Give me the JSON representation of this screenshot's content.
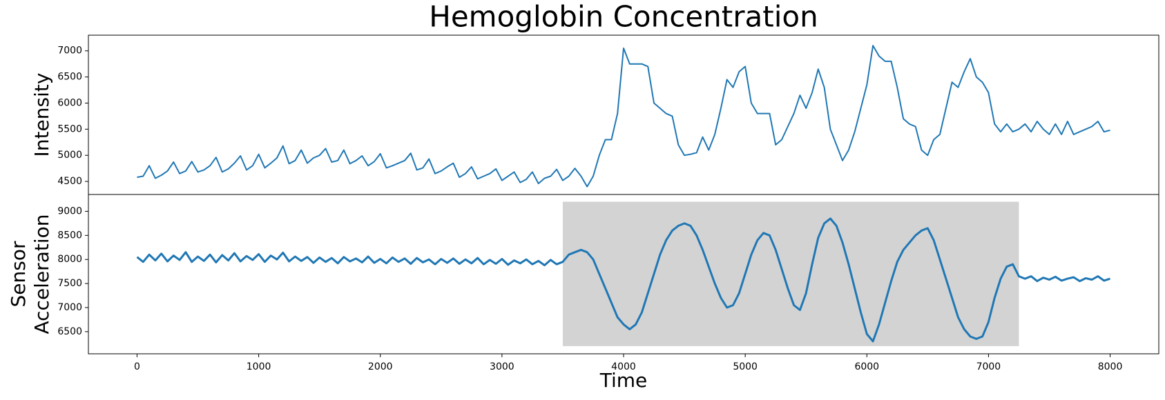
{
  "chart_data": [
    {
      "type": "line",
      "title": "Hemoglobin Concentration",
      "ylabel": "Intensity",
      "xlim": [
        -400,
        8400
      ],
      "ylim": [
        4250,
        7300
      ],
      "yticks": [
        4500,
        5000,
        5500,
        6000,
        6500,
        7000
      ],
      "x": [
        0,
        50,
        100,
        150,
        200,
        250,
        300,
        350,
        400,
        450,
        500,
        550,
        600,
        650,
        700,
        750,
        800,
        850,
        900,
        950,
        1000,
        1050,
        1100,
        1150,
        1200,
        1250,
        1300,
        1350,
        1400,
        1450,
        1500,
        1550,
        1600,
        1650,
        1700,
        1750,
        1800,
        1850,
        1900,
        1950,
        2000,
        2050,
        2100,
        2150,
        2200,
        2250,
        2300,
        2350,
        2400,
        2450,
        2500,
        2550,
        2600,
        2650,
        2700,
        2750,
        2800,
        2850,
        2900,
        2950,
        3000,
        3050,
        3100,
        3150,
        3200,
        3250,
        3300,
        3350,
        3400,
        3450,
        3500,
        3550,
        3600,
        3650,
        3700,
        3750,
        3800,
        3850,
        3900,
        3950,
        4000,
        4050,
        4100,
        4150,
        4200,
        4250,
        4300,
        4350,
        4400,
        4450,
        4500,
        4550,
        4600,
        4650,
        4700,
        4750,
        4800,
        4850,
        4900,
        4950,
        5000,
        5050,
        5100,
        5150,
        5200,
        5250,
        5300,
        5350,
        5400,
        5450,
        5500,
        5550,
        5600,
        5650,
        5700,
        5750,
        5800,
        5850,
        5900,
        5950,
        6000,
        6050,
        6100,
        6150,
        6200,
        6250,
        6300,
        6350,
        6400,
        6450,
        6500,
        6550,
        6600,
        6650,
        6700,
        6750,
        6800,
        6850,
        6900,
        6950,
        7000,
        7050,
        7100,
        7150,
        7200,
        7250,
        7300,
        7350,
        7400,
        7450,
        7500,
        7550,
        7600,
        7650,
        7700,
        7750,
        7800,
        7850,
        7900,
        7950,
        8000
      ],
      "values": [
        4580,
        4600,
        4800,
        4560,
        4620,
        4700,
        4870,
        4650,
        4700,
        4880,
        4680,
        4720,
        4800,
        4960,
        4680,
        4740,
        4850,
        4990,
        4720,
        4800,
        5020,
        4760,
        4850,
        4950,
        5180,
        4840,
        4900,
        5100,
        4850,
        4950,
        5000,
        5130,
        4870,
        4900,
        5100,
        4840,
        4900,
        4990,
        4800,
        4880,
        5030,
        4760,
        4800,
        4850,
        4900,
        5040,
        4720,
        4760,
        4930,
        4650,
        4700,
        4780,
        4850,
        4580,
        4650,
        4780,
        4550,
        4600,
        4650,
        4740,
        4520,
        4600,
        4680,
        4480,
        4540,
        4680,
        4460,
        4560,
        4600,
        4730,
        4520,
        4600,
        4750,
        4600,
        4400,
        4600,
        5000,
        5300,
        5300,
        5800,
        7050,
        6750,
        6750,
        6750,
        6700,
        6000,
        5900,
        5800,
        5750,
        5200,
        5000,
        5020,
        5050,
        5350,
        5100,
        5400,
        5900,
        6450,
        6300,
        6600,
        6700,
        6000,
        5800,
        5800,
        5800,
        5200,
        5300,
        5550,
        5800,
        6150,
        5900,
        6200,
        6650,
        6300,
        5500,
        5200,
        4900,
        5100,
        5450,
        5900,
        6350,
        7100,
        6900,
        6800,
        6800,
        6300,
        5700,
        5600,
        5550,
        5100,
        5000,
        5300,
        5400,
        5900,
        6400,
        6300,
        6600,
        6850,
        6500,
        6400,
        6200,
        5600,
        5450,
        5600,
        5450,
        5500,
        5600,
        5450,
        5650,
        5500,
        5400,
        5600,
        5400,
        5650,
        5400,
        5450,
        5500,
        5550,
        5650,
        5450,
        5480
      ],
      "color": "#1f77b4"
    },
    {
      "type": "line",
      "ylabel": [
        "Sensor",
        "Acceleration"
      ],
      "xlabel": "Time",
      "xlim": [
        -400,
        8400
      ],
      "ylim": [
        6040,
        9350
      ],
      "yticks": [
        6500,
        7000,
        7500,
        8000,
        8500,
        9000
      ],
      "xticks": [
        0,
        1000,
        2000,
        3000,
        4000,
        5000,
        6000,
        7000,
        8000
      ],
      "shade": {
        "xlim": [
          3500,
          7250
        ],
        "ylim": [
          6200,
          9200
        ],
        "color": "#d3d3d3"
      },
      "x": [
        0,
        50,
        100,
        150,
        200,
        250,
        300,
        350,
        400,
        450,
        500,
        550,
        600,
        650,
        700,
        750,
        800,
        850,
        900,
        950,
        1000,
        1050,
        1100,
        1150,
        1200,
        1250,
        1300,
        1350,
        1400,
        1450,
        1500,
        1550,
        1600,
        1650,
        1700,
        1750,
        1800,
        1850,
        1900,
        1950,
        2000,
        2050,
        2100,
        2150,
        2200,
        2250,
        2300,
        2350,
        2400,
        2450,
        2500,
        2550,
        2600,
        2650,
        2700,
        2750,
        2800,
        2850,
        2900,
        2950,
        3000,
        3050,
        3100,
        3150,
        3200,
        3250,
        3300,
        3350,
        3400,
        3450,
        3500,
        3550,
        3600,
        3650,
        3700,
        3750,
        3800,
        3850,
        3900,
        3950,
        4000,
        4050,
        4100,
        4150,
        4200,
        4250,
        4300,
        4350,
        4400,
        4450,
        4500,
        4550,
        4600,
        4650,
        4700,
        4750,
        4800,
        4850,
        4900,
        4950,
        5000,
        5050,
        5100,
        5150,
        5200,
        5250,
        5300,
        5350,
        5400,
        5450,
        5500,
        5550,
        5600,
        5650,
        5700,
        5750,
        5800,
        5850,
        5900,
        5950,
        6000,
        6050,
        6100,
        6150,
        6200,
        6250,
        6300,
        6350,
        6400,
        6450,
        6500,
        6550,
        6600,
        6650,
        6700,
        6750,
        6800,
        6850,
        6900,
        6950,
        7000,
        7050,
        7100,
        7150,
        7200,
        7250,
        7300,
        7350,
        7400,
        7450,
        7500,
        7550,
        7600,
        7650,
        7700,
        7750,
        7800,
        7850,
        7900,
        7950,
        8000
      ],
      "values": [
        8050,
        7950,
        8100,
        7980,
        8120,
        7960,
        8080,
        7990,
        8150,
        7950,
        8060,
        7970,
        8100,
        7940,
        8090,
        7980,
        8130,
        7960,
        8070,
        7990,
        8110,
        7950,
        8080,
        8000,
        8140,
        7960,
        8060,
        7970,
        8050,
        7930,
        8040,
        7950,
        8030,
        7920,
        8050,
        7960,
        8020,
        7940,
        8060,
        7930,
        8010,
        7920,
        8040,
        7950,
        8020,
        7910,
        8030,
        7940,
        8000,
        7900,
        8010,
        7930,
        8020,
        7910,
        8000,
        7920,
        8030,
        7900,
        7990,
        7910,
        8010,
        7890,
        7980,
        7920,
        8000,
        7900,
        7970,
        7880,
        7990,
        7900,
        7950,
        8100,
        8150,
        8200,
        8150,
        8000,
        7700,
        7400,
        7100,
        6800,
        6650,
        6550,
        6650,
        6900,
        7300,
        7700,
        8100,
        8400,
        8600,
        8700,
        8750,
        8700,
        8500,
        8200,
        7850,
        7500,
        7200,
        7000,
        7050,
        7300,
        7700,
        8100,
        8400,
        8550,
        8500,
        8200,
        7800,
        7400,
        7050,
        6950,
        7300,
        7900,
        8450,
        8750,
        8850,
        8700,
        8350,
        7900,
        7400,
        6900,
        6450,
        6300,
        6650,
        7100,
        7550,
        7950,
        8200,
        8350,
        8500,
        8600,
        8650,
        8400,
        8000,
        7600,
        7200,
        6800,
        6550,
        6400,
        6350,
        6400,
        6700,
        7200,
        7600,
        7850,
        7900,
        7650,
        7600,
        7650,
        7550,
        7620,
        7580,
        7640,
        7560,
        7600,
        7630,
        7550,
        7610,
        7580,
        7650,
        7560,
        7600
      ],
      "color": "#1f77b4"
    }
  ]
}
